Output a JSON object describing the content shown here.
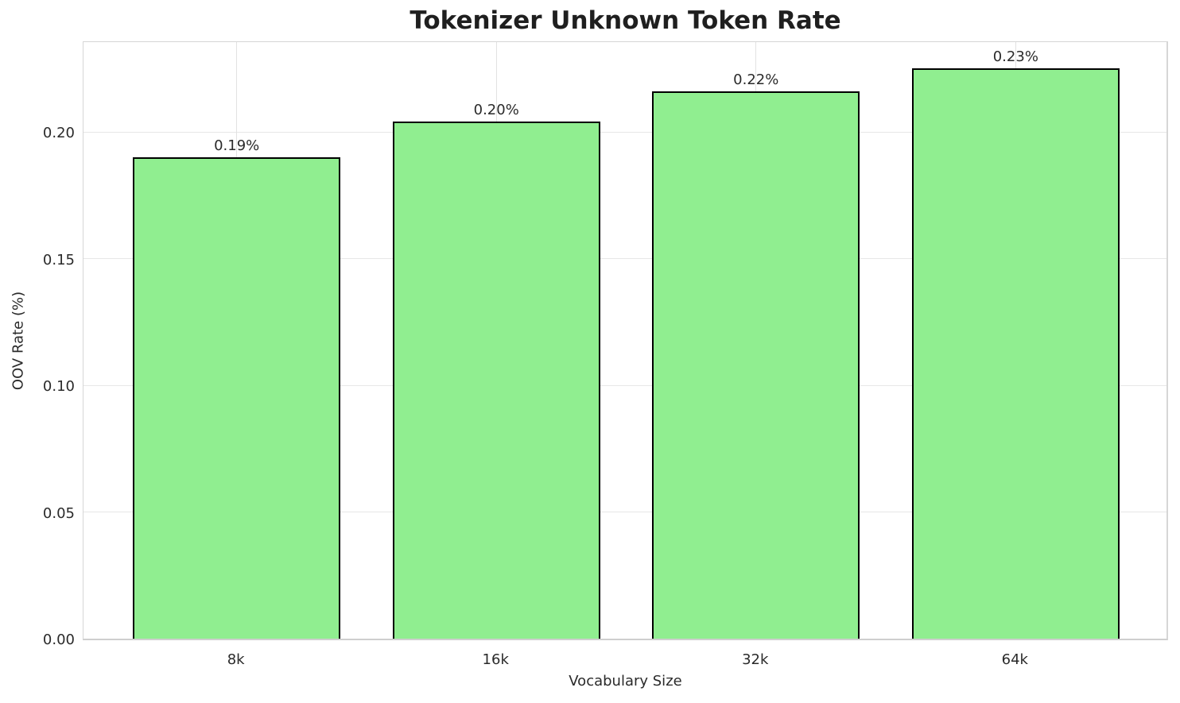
{
  "chart_data": {
    "type": "bar",
    "title": "Tokenizer Unknown Token Rate",
    "xlabel": "Vocabulary Size",
    "ylabel": "OOV Rate (%)",
    "categories": [
      "8k",
      "16k",
      "32k",
      "64k"
    ],
    "values": [
      0.19,
      0.204,
      0.216,
      0.225
    ],
    "bar_labels": [
      "0.19%",
      "0.20%",
      "0.22%",
      "0.23%"
    ],
    "yticks": [
      0.0,
      0.05,
      0.1,
      0.15,
      0.2
    ],
    "ytick_labels": [
      "0.00",
      "0.05",
      "0.10",
      "0.15",
      "0.20"
    ],
    "ylim": [
      0,
      0.2364
    ],
    "xlim": [
      -0.59,
      3.59
    ],
    "bar_unit_width": 0.8,
    "grid": true,
    "legend": null,
    "colors": {
      "bar_fill": "#90EE90",
      "bar_edge": "#000000",
      "grid_h": "#e7e7e7",
      "grid_v": "#e2e2e2",
      "spine": "#d6d6d6",
      "text": "#2a2a2a",
      "background": "#ffffff"
    }
  }
}
